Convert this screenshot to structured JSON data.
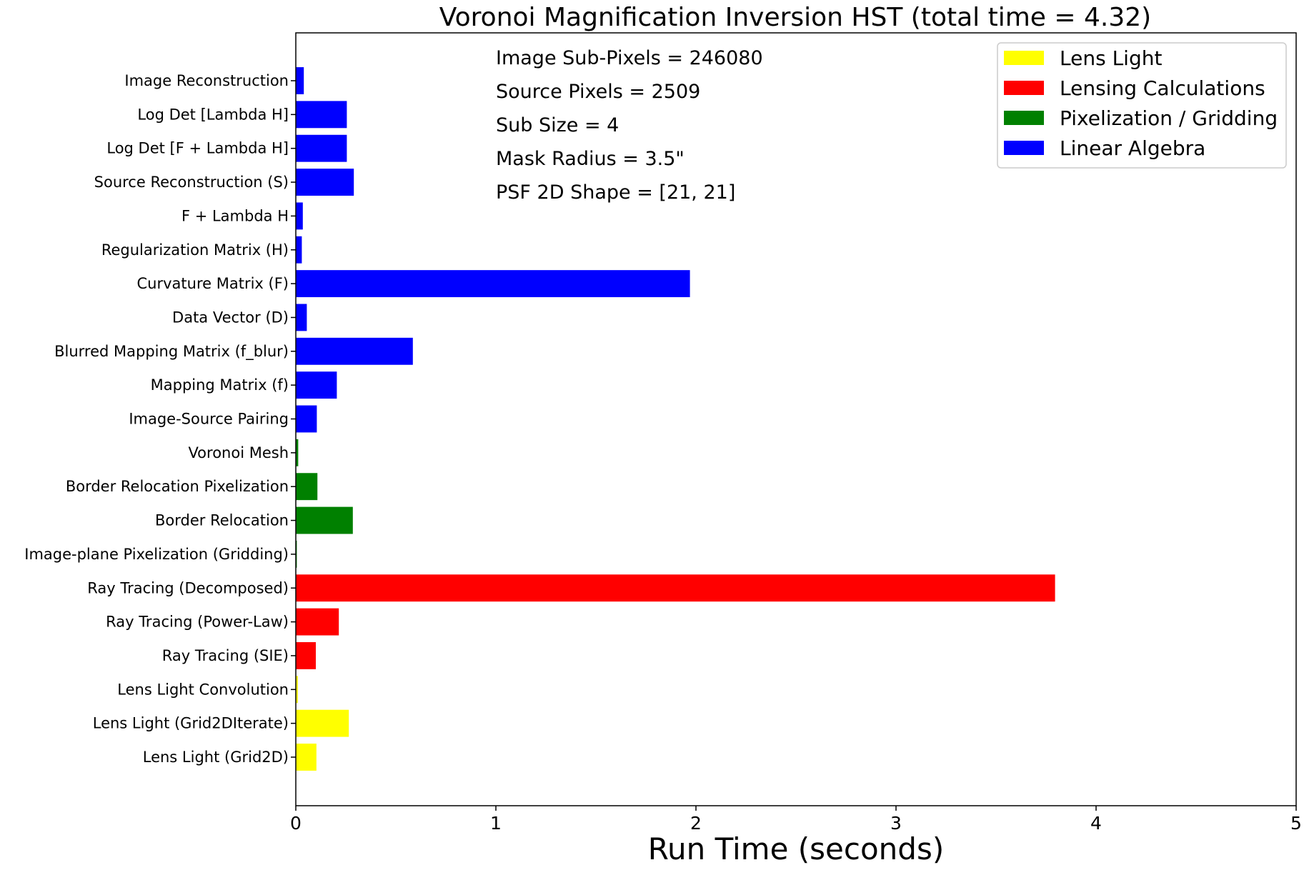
{
  "chart_data": {
    "type": "bar",
    "orientation": "horizontal",
    "title": "Voronoi Magnification Inversion HST (total time = 4.32)",
    "xlabel": "Run Time (seconds)",
    "ylabel": "",
    "xlim": [
      0,
      5
    ],
    "xticks": [
      "0",
      "1",
      "2",
      "3",
      "4",
      "5"
    ],
    "grid": false,
    "legend_position": "top-right",
    "legend": [
      {
        "label": "Lens Light",
        "color": "#ffff00"
      },
      {
        "label": "Lensing Calculations",
        "color": "#ff0000"
      },
      {
        "label": "Pixelization / Gridding",
        "color": "#008000"
      },
      {
        "label": "Linear Algebra",
        "color": "#0000ff"
      }
    ],
    "annotations": [
      "Image Sub-Pixels = 246080",
      "Source Pixels = 2509",
      "Sub Size = 4",
      "Mask Radius = 3.5\"",
      "PSF 2D Shape = [21, 21]"
    ],
    "categories": [
      "Image Reconstruction",
      "Log Det [Lambda H]",
      "Log Det [F + Lambda H]",
      "Source Reconstruction (S)",
      "F + Lambda H",
      "Regularization Matrix (H)",
      "Curvature Matrix (F)",
      "Data Vector (D)",
      "Blurred Mapping Matrix (f_blur)",
      "Mapping Matrix (f)",
      "Image-Source Pairing",
      "Voronoi Mesh",
      "Border Relocation Pixelization",
      "Border Relocation",
      "Image-plane Pixelization (Gridding)",
      "Ray Tracing (Decomposed)",
      "Ray Tracing (Power-Law)",
      "Ray Tracing (SIE)",
      "Lens Light Convolution",
      "Lens Light (Grid2DIterate)",
      "Lens Light (Grid2D)"
    ],
    "values": [
      0.04,
      0.255,
      0.255,
      0.29,
      0.035,
      0.03,
      1.97,
      0.055,
      0.585,
      0.205,
      0.105,
      0.012,
      0.108,
      0.285,
      0.005,
      3.795,
      0.215,
      0.1,
      0.01,
      0.265,
      0.103
    ],
    "colors": [
      "#0000ff",
      "#0000ff",
      "#0000ff",
      "#0000ff",
      "#0000ff",
      "#0000ff",
      "#0000ff",
      "#0000ff",
      "#0000ff",
      "#0000ff",
      "#0000ff",
      "#008000",
      "#008000",
      "#008000",
      "#008000",
      "#ff0000",
      "#ff0000",
      "#ff0000",
      "#ffff00",
      "#ffff00",
      "#ffff00"
    ]
  }
}
